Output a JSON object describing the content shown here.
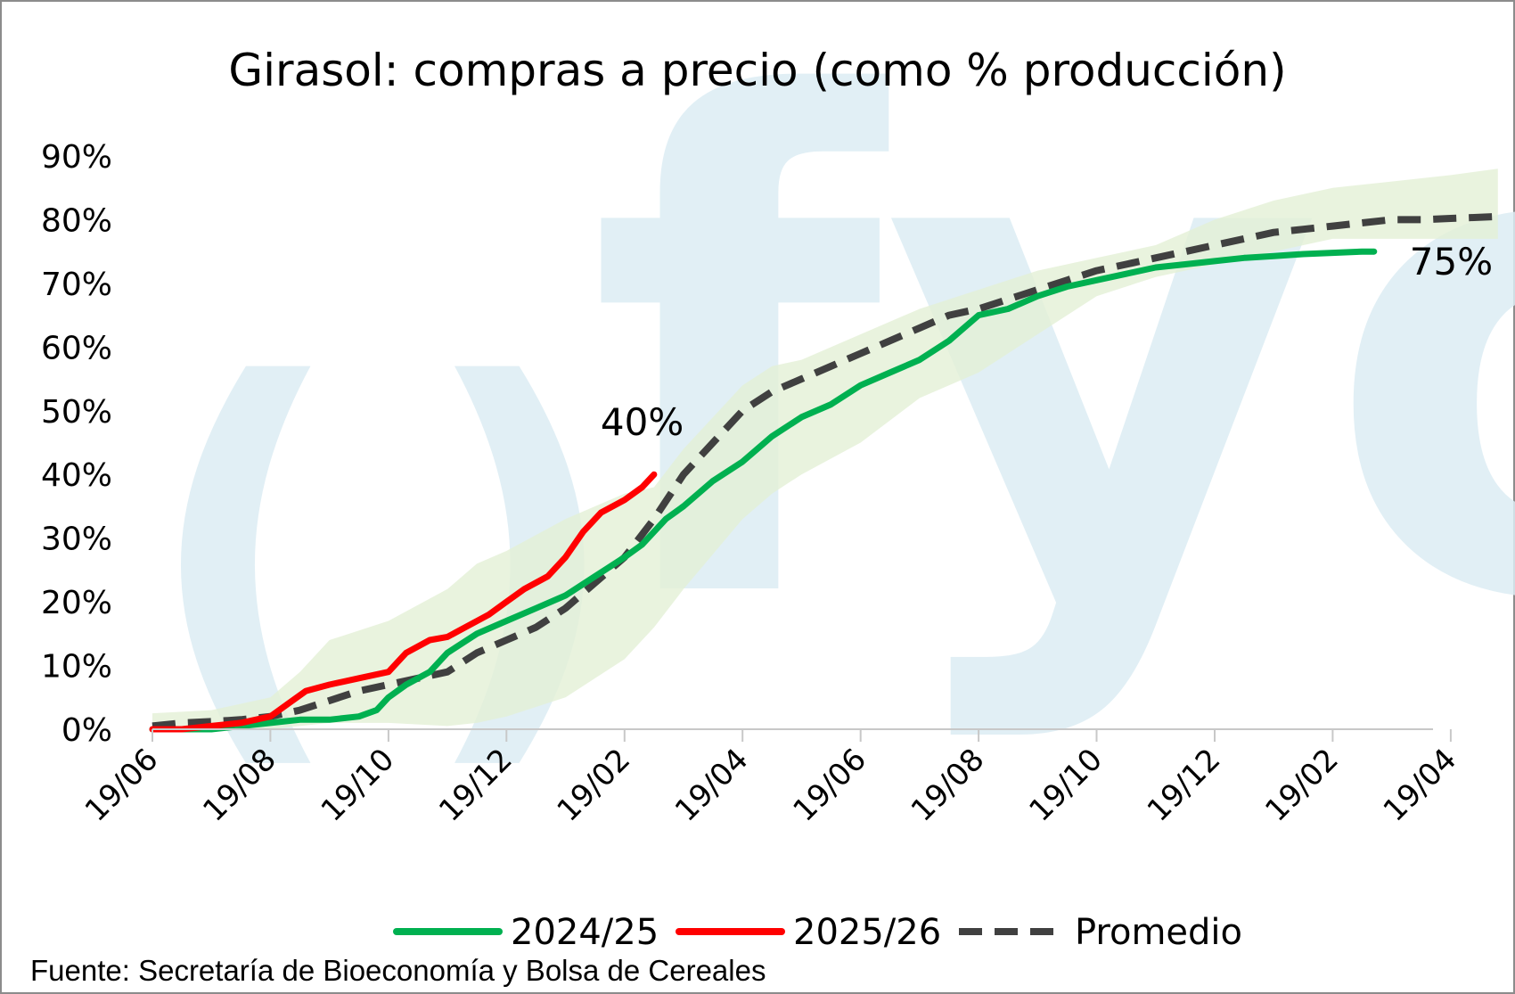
{
  "source": "Fuente: Secretaría de Bioeconomía y Bolsa de Cereales",
  "watermark": "fyo",
  "chart_data": {
    "type": "line",
    "title": "Girasol: compras a precio (como % producción)",
    "xlabel": "",
    "ylabel": "",
    "ylim": [
      0,
      90
    ],
    "yticks": [
      "0%",
      "10%",
      "20%",
      "30%",
      "40%",
      "50%",
      "60%",
      "70%",
      "80%",
      "90%"
    ],
    "xlim": [
      0,
      21.7
    ],
    "xticks": [
      {
        "pos": 0,
        "label": "19/06"
      },
      {
        "pos": 2,
        "label": "19/08"
      },
      {
        "pos": 4,
        "label": "19/10"
      },
      {
        "pos": 6,
        "label": "19/12"
      },
      {
        "pos": 8,
        "label": "19/02"
      },
      {
        "pos": 10,
        "label": "19/04"
      },
      {
        "pos": 12,
        "label": "19/06"
      },
      {
        "pos": 14,
        "label": "19/08"
      },
      {
        "pos": 16,
        "label": "19/10"
      },
      {
        "pos": 18,
        "label": "19/12"
      },
      {
        "pos": 20,
        "label": "19/02"
      },
      {
        "pos": 22,
        "label": "19/04"
      }
    ],
    "grid": false,
    "legend_position": "bottom",
    "band": {
      "color": "#e3f0d6",
      "x": [
        0,
        1,
        2,
        2.5,
        3,
        4,
        5,
        5.5,
        6,
        7,
        8,
        8.5,
        9,
        10,
        10.5,
        11,
        12,
        13,
        14,
        15,
        16,
        17,
        18,
        19,
        20,
        21,
        22,
        22.8
      ],
      "upper": [
        2.5,
        3,
        5,
        9,
        14,
        17,
        22,
        26,
        28,
        33,
        37,
        38,
        44,
        54,
        57,
        58,
        62,
        66,
        69,
        72,
        74,
        76,
        80,
        83,
        85,
        86,
        87,
        88
      ],
      "lower": [
        0,
        0,
        0,
        0.5,
        1,
        1,
        0.5,
        1,
        2,
        5,
        11,
        16,
        22,
        33,
        37,
        40,
        45,
        52,
        56,
        62,
        68,
        71,
        73,
        75,
        77,
        77,
        77,
        77
      ]
    },
    "series": [
      {
        "name": "2024/25",
        "color": "#00b050",
        "dash": false,
        "x": [
          0,
          1,
          2,
          2.5,
          3,
          3.5,
          3.8,
          4,
          4.3,
          4.7,
          5,
          5.5,
          6,
          6.5,
          7,
          7.5,
          8,
          8.3,
          8.7,
          9,
          9.5,
          10,
          10.5,
          11,
          11.5,
          12,
          12.5,
          13,
          13.5,
          14,
          14.5,
          15,
          15.5,
          16,
          16.5,
          17,
          17.5,
          18,
          18.5,
          19,
          19.5,
          20,
          20.5,
          20.7
        ],
        "y": [
          0,
          0,
          1,
          1.5,
          1.5,
          2,
          3,
          5,
          7,
          9,
          12,
          15,
          17,
          19,
          21,
          24,
          27,
          29,
          33,
          35,
          39,
          42,
          46,
          49,
          51,
          54,
          56,
          58,
          61,
          65,
          66,
          68,
          69.5,
          70.5,
          71.5,
          72.5,
          73,
          73.5,
          74,
          74.3,
          74.6,
          74.8,
          75,
          75
        ]
      },
      {
        "name": "2025/26",
        "color": "#ff0000",
        "dash": false,
        "x": [
          0,
          0.5,
          1,
          1.5,
          2,
          2.3,
          2.6,
          3,
          3.5,
          4,
          4.3,
          4.7,
          5,
          5.3,
          5.7,
          6,
          6.3,
          6.7,
          7,
          7.3,
          7.6,
          8,
          8.3,
          8.5
        ],
        "y": [
          0,
          0,
          0.5,
          1,
          2,
          4,
          6,
          7,
          8,
          9,
          12,
          14,
          14.5,
          16,
          18,
          20,
          22,
          24,
          27,
          31,
          34,
          36,
          38,
          40
        ]
      },
      {
        "name": "Promedio",
        "color": "#404040",
        "dash": true,
        "x": [
          0,
          0.5,
          1,
          1.5,
          2,
          2.5,
          3,
          3.5,
          4,
          4.5,
          5,
          5.5,
          6,
          6.5,
          7,
          7.5,
          8,
          8.5,
          9,
          9.5,
          10,
          10.5,
          11,
          11.5,
          12,
          12.5,
          13,
          13.5,
          14,
          14.5,
          15,
          15.5,
          16,
          16.5,
          17,
          17.5,
          18,
          18.5,
          19,
          19.5,
          20,
          20.5,
          21,
          21.5,
          22,
          22.8
        ],
        "y": [
          0.5,
          1,
          1.2,
          1.5,
          2,
          3,
          4.5,
          6,
          7,
          8,
          9,
          12,
          14,
          16,
          19,
          23,
          27,
          33,
          40,
          45,
          50,
          53,
          55,
          57,
          59,
          61,
          63,
          65,
          66,
          67.5,
          69,
          70.5,
          72,
          73,
          74,
          75,
          76,
          77,
          78,
          78.5,
          79,
          79.5,
          80,
          80,
          80.2,
          80.5
        ]
      }
    ],
    "annotations": [
      {
        "text": "40%",
        "x": 8.5,
        "y": 40
      },
      {
        "text": "75%",
        "x": 20.7,
        "y": 75
      }
    ]
  }
}
